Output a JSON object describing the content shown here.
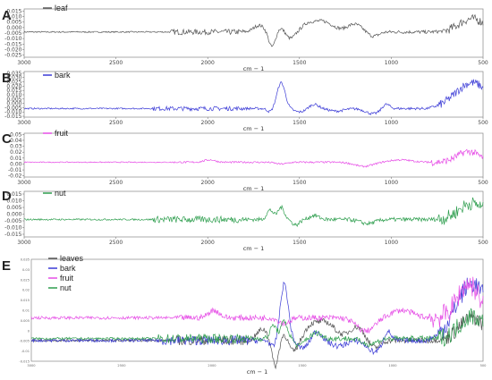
{
  "chart_data": [
    {
      "panel": "A",
      "type": "line",
      "series": [
        {
          "name": "leaf",
          "color": "#555555"
        }
      ],
      "x_ticks": [
        3000,
        2500,
        2000,
        1500,
        1000,
        500
      ],
      "x_tick_labels": [
        "3000",
        "2500",
        "2000",
        "1500",
        "1000",
        "500"
      ],
      "xlabel": "cm − 1",
      "xlim": [
        3000,
        500
      ],
      "y_ticks": [
        0.015,
        0.01,
        0.005,
        0.0,
        -0.005,
        -0.01,
        -0.015,
        -0.02,
        -0.025
      ],
      "y_tick_labels": [
        "0.015",
        "0.010",
        "0.005",
        "0.000",
        "-0.005",
        "-0.010",
        "-0.015",
        "-0.020",
        "-0.025"
      ],
      "ylim": [
        -0.027,
        0.017
      ],
      "baseline": -0.004
    },
    {
      "panel": "B",
      "type": "line",
      "series": [
        {
          "name": "bark",
          "color": "#3b3bd6"
        }
      ],
      "x_ticks": [
        3000,
        2500,
        2000,
        1500,
        1000,
        500
      ],
      "x_tick_labels": [
        "3000",
        "2500",
        "2000",
        "1500",
        "1000",
        "500"
      ],
      "xlabel": "cm − 1",
      "xlim": [
        3000,
        500
      ],
      "y_ticks": [
        0.035,
        0.03,
        0.025,
        0.02,
        0.015,
        0.01,
        0.005,
        0.0,
        -0.005,
        -0.01,
        -0.015
      ],
      "y_tick_labels": [
        "0.035",
        "0.030",
        "0.025",
        "0.020",
        "0.015",
        "0.010",
        "0.005",
        "0.000",
        "-0.005",
        "-0.010",
        "-0.015"
      ],
      "ylim": [
        -0.016,
        0.037
      ],
      "baseline": -0.006
    },
    {
      "panel": "C",
      "type": "line",
      "series": [
        {
          "name": "fruit",
          "color": "#e64de6"
        }
      ],
      "x_ticks": [
        3000,
        2500,
        2000,
        1500,
        1000,
        500
      ],
      "x_tick_labels": [
        "3000",
        "2500",
        "2000",
        "1500",
        "1000",
        "500"
      ],
      "xlabel": "cm − 1",
      "xlim": [
        3000,
        500
      ],
      "y_ticks": [
        0.05,
        0.04,
        0.03,
        0.02,
        0.01,
        0.0,
        -0.01,
        -0.02
      ],
      "y_tick_labels": [
        "0.05",
        "0.04",
        "0.03",
        "0.02",
        "0.01",
        "0.00",
        "-0.01",
        "-0.02"
      ],
      "ylim": [
        -0.022,
        0.052
      ],
      "baseline": 0.003
    },
    {
      "panel": "D",
      "type": "line",
      "series": [
        {
          "name": "nut",
          "color": "#2e9e4e"
        }
      ],
      "x_ticks": [
        3000,
        2500,
        2000,
        1500,
        1000,
        500
      ],
      "x_tick_labels": [
        "3000",
        "2500",
        "2000",
        "1500",
        "1000",
        "500"
      ],
      "xlabel": "cm − 1",
      "xlim": [
        3000,
        500
      ],
      "y_ticks": [
        0.015,
        0.01,
        0.005,
        0.0,
        -0.005,
        -0.01,
        -0.015
      ],
      "y_tick_labels": [
        "0.015",
        "0.010",
        "0.005",
        "0.000",
        "-0.005",
        "-0.010",
        "-0.015"
      ],
      "ylim": [
        -0.017,
        0.017
      ],
      "baseline": -0.004
    },
    {
      "panel": "E",
      "type": "line",
      "series": [
        {
          "name": "leaves",
          "color": "#555555"
        },
        {
          "name": "bark",
          "color": "#3b3bd6"
        },
        {
          "name": "fruit",
          "color": "#e64de6"
        },
        {
          "name": "nut",
          "color": "#2e9e4e"
        }
      ],
      "xlabel": "cm − 1",
      "xlim": [
        3000,
        500
      ],
      "x_tick_labels": [
        "3000",
        "2500",
        "2000",
        "1500",
        "1000",
        "500"
      ],
      "y_tick_labels": [
        "0.035",
        "0.03",
        "0.025",
        "0.02",
        "0.015",
        "0.01",
        "0.005",
        "0",
        "-0.005",
        "-0.01",
        "-0.015"
      ],
      "ylim": [
        -0.017,
        0.037
      ]
    }
  ]
}
